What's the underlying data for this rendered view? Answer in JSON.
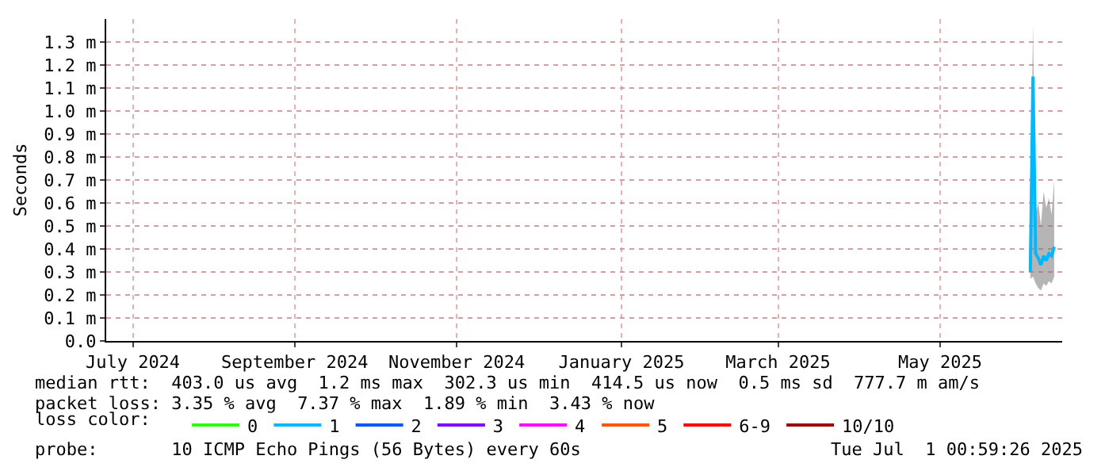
{
  "chart_data": {
    "type": "line",
    "ylabel": "Seconds",
    "legend_title": "loss color:",
    "legend": "bottom",
    "grid": true,
    "marker": "none",
    "line_style": "solid",
    "x": [
      "2025-06-19",
      "2025-06-20",
      "2025-06-21",
      "2025-06-22",
      "2025-06-23",
      "2025-06-24",
      "2025-06-25",
      "2025-06-26",
      "2025-06-27",
      "2025-06-28"
    ],
    "xlim": [
      "2024-07-06",
      "2025-07-01"
    ],
    "xticks": [
      {
        "value": "2024-07-16",
        "label": "July 2024"
      },
      {
        "value": "2024-09-15",
        "label": "September 2024"
      },
      {
        "value": "2024-11-15",
        "label": "November 2024"
      },
      {
        "value": "2025-01-16",
        "label": "January 2025"
      },
      {
        "value": "2025-03-16",
        "label": "March 2025"
      },
      {
        "value": "2025-05-16",
        "label": "May 2025"
      }
    ],
    "ylim": [
      0,
      1.4
    ],
    "yticks": [
      {
        "value": 0,
        "label": "0.0"
      },
      {
        "value": 0.1,
        "label": "0.1 m"
      },
      {
        "value": 0.2,
        "label": "0.2 m"
      },
      {
        "value": 0.3,
        "label": "0.3 m"
      },
      {
        "value": 0.4,
        "label": "0.4 m"
      },
      {
        "value": 0.5,
        "label": "0.5 m"
      },
      {
        "value": 0.6,
        "label": "0.6 m"
      },
      {
        "value": 0.7,
        "label": "0.7 m"
      },
      {
        "value": 0.8,
        "label": "0.8 m"
      },
      {
        "value": 0.9,
        "label": "0.9 m"
      },
      {
        "value": 1.0,
        "label": "1.0 m"
      },
      {
        "value": 1.1,
        "label": "1.1 m"
      },
      {
        "value": 1.2,
        "label": "1.2 m"
      },
      {
        "value": 1.3,
        "label": "1.3 m"
      }
    ],
    "series": [
      {
        "name": "0",
        "color": "#26ff00",
        "values": [
          null,
          null,
          null,
          null,
          null,
          null,
          null,
          null,
          null,
          null
        ]
      },
      {
        "name": "1",
        "color": "#00b8ff",
        "values": [
          0.3,
          1.15,
          0.38,
          0.36,
          0.33,
          0.37,
          0.35,
          0.38,
          0.37,
          0.41
        ],
        "lower": [
          0.27,
          0.28,
          0.25,
          0.23,
          0.22,
          0.25,
          0.24,
          0.26,
          0.25,
          0.28
        ],
        "upper": [
          0.4,
          1.38,
          0.55,
          0.6,
          0.5,
          0.65,
          0.58,
          0.62,
          0.55,
          0.7
        ]
      },
      {
        "name": "2",
        "color": "#0059ff",
        "values": [
          null,
          null,
          null,
          null,
          null,
          null,
          null,
          null,
          null,
          null
        ]
      },
      {
        "name": "3",
        "color": "#7e00ff",
        "values": [
          null,
          null,
          null,
          null,
          null,
          null,
          null,
          null,
          null,
          null
        ]
      },
      {
        "name": "4",
        "color": "#ff00ff",
        "values": [
          null,
          null,
          null,
          null,
          null,
          null,
          null,
          null,
          null,
          null
        ]
      },
      {
        "name": "5",
        "color": "#ff5500",
        "values": [
          null,
          null,
          null,
          null,
          null,
          null,
          null,
          null,
          null,
          null
        ]
      },
      {
        "name": "6-9",
        "color": "#ff0000",
        "values": [
          null,
          null,
          null,
          null,
          null,
          null,
          null,
          null,
          null,
          null
        ]
      },
      {
        "name": "10/10",
        "color": "#a10000",
        "values": [
          null,
          null,
          null,
          null,
          null,
          null,
          null,
          null,
          null,
          null
        ]
      }
    ],
    "annotations": [
      "median rtt:  403.0 us avg  1.2 ms max  302.3 us min  414.5 us now  0.5 ms sd  777.7 m am/s",
      "packet loss: 3.35 % avg  7.37 % max  1.89 % min  3.43 % now",
      "probe:       10 ICMP Echo Pings (56 Bytes) every 60s",
      "Tue Jul  1 00:59:26 2025"
    ]
  }
}
